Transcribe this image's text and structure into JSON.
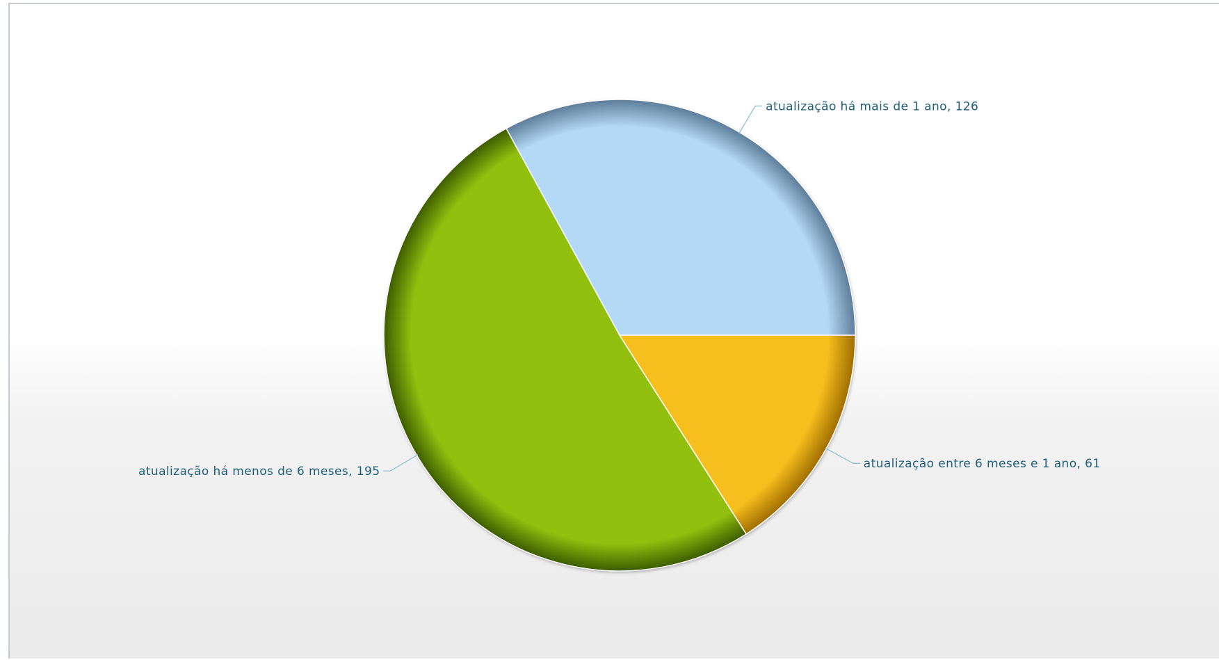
{
  "chart_data": {
    "type": "pie",
    "title": "",
    "slices": [
      {
        "label": "atualização há mais de 1 ano, 126",
        "category": "atualização há mais de 1 ano",
        "value": 126,
        "color": "#b3d9f7",
        "edge": "#5d7d99"
      },
      {
        "label": "atualização há menos de 6 meses, 195",
        "category": "atualização há menos de 6 meses",
        "value": 195,
        "color": "#93bf0e",
        "edge": "#3d5c00"
      },
      {
        "label": "atualização entre 6 meses e 1 ano, 61",
        "category": "atualização entre 6 meses e 1 ano",
        "value": 61,
        "color": "#f7bf1e",
        "edge": "#a06d00"
      }
    ],
    "start_direction": "east",
    "direction": "counterclockwise",
    "legend": "none",
    "label_placement": "outside with leader lines"
  }
}
